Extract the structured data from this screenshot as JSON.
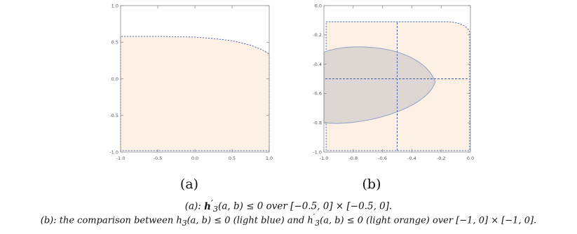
{
  "chart_data": [
    {
      "type": "area",
      "panel_label": "(a)",
      "xlim": [
        -1.0,
        1.0
      ],
      "ylim": [
        -1.0,
        1.0
      ],
      "x_ticks": [
        "-1.0",
        "-0.5",
        "0.0",
        "0.5",
        "1.0"
      ],
      "y_ticks": [
        "-1.0",
        "-0.5",
        "0.0",
        "0.5",
        "1.0"
      ],
      "regions": [
        {
          "color": "#fdf0e4",
          "boundary_color": "#3d5fae",
          "boundary_style": "dashed",
          "x": [
            -1.0,
            -0.5,
            0.0,
            0.25,
            0.5,
            0.75,
            0.9,
            1.0
          ],
          "y_top": [
            0.58,
            0.58,
            0.57,
            0.55,
            0.52,
            0.46,
            0.4,
            0.34
          ],
          "y_bottom": -0.98
        }
      ]
    },
    {
      "type": "area",
      "panel_label": "(b)",
      "xlim": [
        -1.0,
        0.0
      ],
      "ylim": [
        -1.0,
        0.0
      ],
      "x_ticks": [
        "-1.0",
        "-0.8",
        "-0.6",
        "-0.4",
        "-0.2",
        "0.0"
      ],
      "y_ticks": [
        "-1.0",
        "-0.8",
        "-0.6",
        "-0.4",
        "-0.2",
        "0.0"
      ],
      "reference_lines": {
        "x": -0.5,
        "y": -0.5,
        "color": "#3d5fae",
        "style": "dashed"
      },
      "regions": [
        {
          "color": "#fdf0e4",
          "boundary_color": "#3d5fae",
          "boundary_style": "dashed",
          "x_min": -0.985,
          "x_max": -0.005,
          "y_top": -0.11,
          "y_bottom": -0.99,
          "corner_drop_right": -0.18
        },
        {
          "color": "#ddd6d3",
          "boundary_color": "#8a9ac4",
          "shape": "half-ellipse",
          "vertex": [
            -0.24,
            -0.52
          ],
          "left_x": -1.0,
          "top_y": -0.29,
          "bottom_y": -0.8
        }
      ]
    }
  ],
  "labels": {
    "a": "(a)",
    "b": "(b)"
  },
  "captions": {
    "a": {
      "prefix": "(a): ",
      "h": "h",
      "prime": "′",
      "sub": "3",
      "args": "(a, b)",
      "rest": " ≤ 0 over [−0.5, 0] × [−0.5, 0]."
    },
    "b": {
      "prefix": "(b): the comparison between ",
      "h1": "h",
      "sub1": "3",
      "args1": "(a, b)",
      "mid1": " ≤ 0 (light blue) and ",
      "h2": "h",
      "prime2": "′",
      "sub2": "3",
      "args2": "(a, b)",
      "rest": " ≤ 0 (light orange) over [−1, 0] × [−1, 0]."
    }
  }
}
